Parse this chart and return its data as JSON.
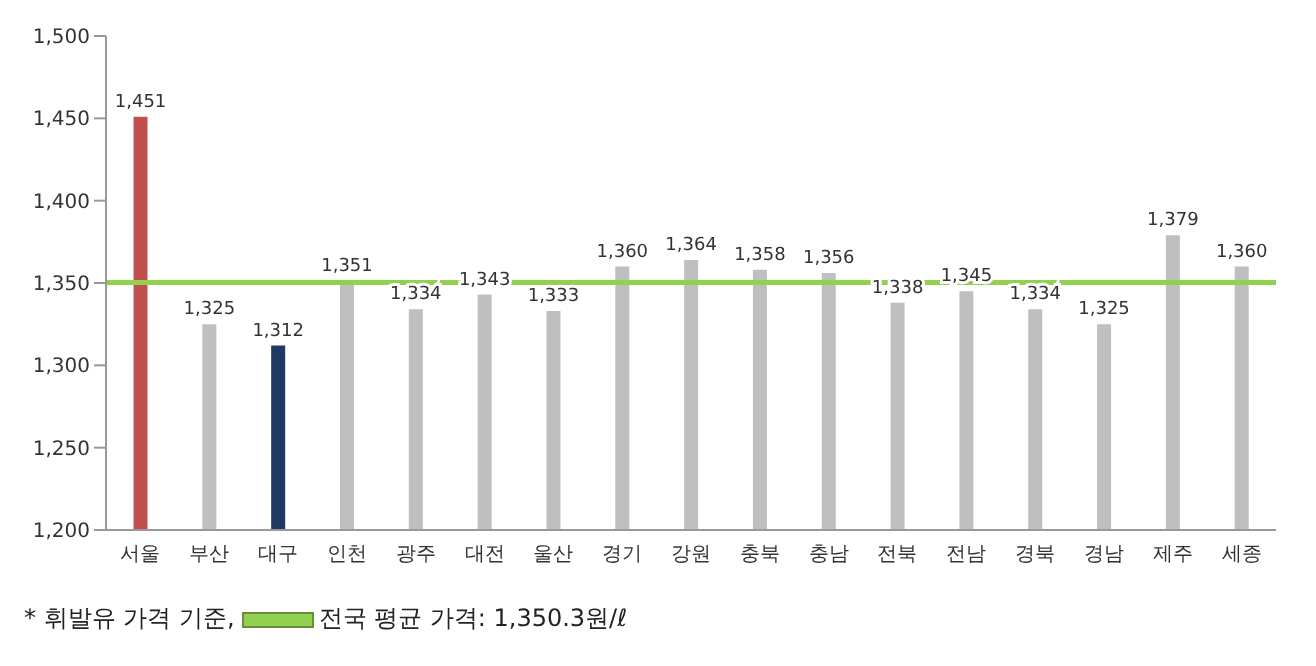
{
  "chart_data": {
    "type": "bar",
    "categories": [
      "서울",
      "부산",
      "대구",
      "인천",
      "광주",
      "대전",
      "울산",
      "경기",
      "강원",
      "충북",
      "충남",
      "전북",
      "전남",
      "경북",
      "경남",
      "제주",
      "세종"
    ],
    "values": [
      1451,
      1325,
      1312,
      1351,
      1334,
      1343,
      1333,
      1360,
      1364,
      1358,
      1356,
      1338,
      1345,
      1334,
      1325,
      1379,
      1360
    ],
    "value_labels": [
      "1,451",
      "1,325",
      "1,312",
      "1,351",
      "1,334",
      "1,343",
      "1,333",
      "1,360",
      "1,364",
      "1,358",
      "1,356",
      "1,338",
      "1,345",
      "1,334",
      "1,325",
      "1,379",
      "1,360"
    ],
    "colors": [
      "#c0504d",
      "#bfbfbf",
      "#1f3864",
      "#bfbfbf",
      "#bfbfbf",
      "#bfbfbf",
      "#bfbfbf",
      "#bfbfbf",
      "#bfbfbf",
      "#bfbfbf",
      "#bfbfbf",
      "#bfbfbf",
      "#bfbfbf",
      "#bfbfbf",
      "#bfbfbf",
      "#bfbfbf",
      "#bfbfbf"
    ],
    "ylim": [
      1200,
      1500
    ],
    "yticks": [
      {
        "value": 1200,
        "label": "1,200"
      },
      {
        "value": 1250,
        "label": "1,250"
      },
      {
        "value": 1300,
        "label": "1,300"
      },
      {
        "value": 1350,
        "label": "1,350"
      },
      {
        "value": 1400,
        "label": "1,400"
      },
      {
        "value": 1450,
        "label": "1,450"
      },
      {
        "value": 1500,
        "label": "1,500"
      }
    ],
    "ref_lines": [
      {
        "axis": "y",
        "value": 1350.3,
        "label": "전국 평균 가격: 1,350.3원/ℓ",
        "color": "#92d050"
      }
    ],
    "annotations": [
      "* 휘발유 가격 기준,"
    ],
    "grid": false,
    "legend": "bottom"
  }
}
